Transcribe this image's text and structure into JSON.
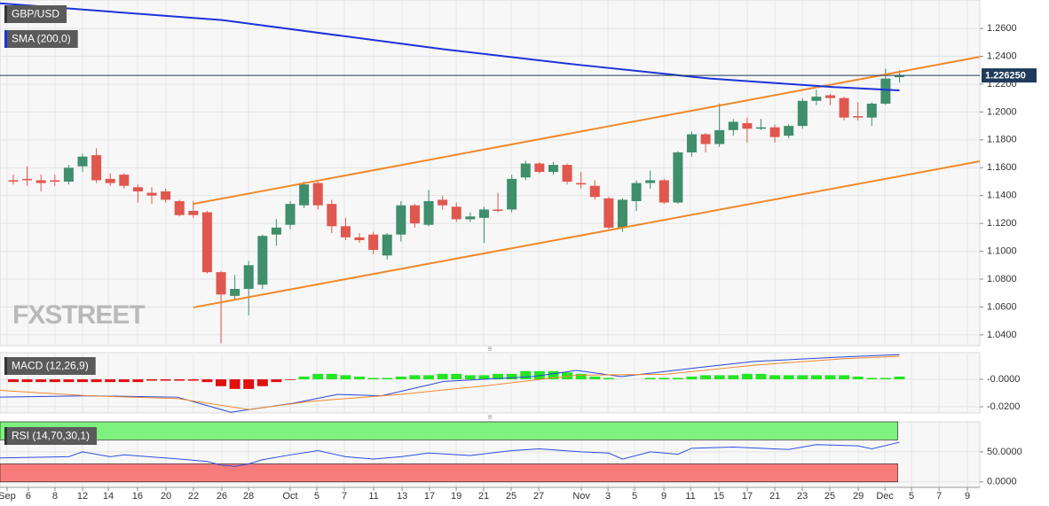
{
  "chart_data": [
    {
      "type": "candlestick",
      "title": "GBP/USD",
      "watermark": "FXSTREET",
      "open": [
        1.151,
        1.152,
        1.151,
        1.151,
        1.15,
        1.161,
        1.169,
        1.152,
        1.155,
        1.146,
        1.142,
        1.143,
        1.136,
        1.129,
        1.128,
        1.085,
        1.068,
        1.073,
        1.076,
        1.112,
        1.119,
        1.133,
        1.149,
        1.134,
        1.118,
        1.11,
        1.112,
        1.097,
        1.112,
        1.133,
        1.119,
        1.137,
        1.132,
        1.123,
        1.124,
        1.13,
        1.13,
        1.153,
        1.163,
        1.157,
        1.162,
        1.149,
        1.147,
        1.138,
        1.117,
        1.136,
        1.149,
        1.151,
        1.135,
        1.171,
        1.184,
        1.177,
        1.187,
        1.192,
        1.188,
        1.189,
        1.183,
        1.19,
        1.208,
        1.212,
        1.21,
        1.197,
        1.196,
        1.206,
        1.225
      ],
      "high": [
        1.155,
        1.161,
        1.155,
        1.155,
        1.162,
        1.17,
        1.174,
        1.156,
        1.156,
        1.148,
        1.146,
        1.145,
        1.137,
        1.136,
        1.129,
        1.086,
        1.083,
        1.093,
        1.112,
        1.123,
        1.136,
        1.15,
        1.15,
        1.137,
        1.124,
        1.113,
        1.114,
        1.113,
        1.136,
        1.134,
        1.144,
        1.14,
        1.135,
        1.128,
        1.132,
        1.142,
        1.155,
        1.165,
        1.164,
        1.164,
        1.163,
        1.157,
        1.151,
        1.139,
        1.138,
        1.151,
        1.158,
        1.152,
        1.172,
        1.186,
        1.185,
        1.206,
        1.195,
        1.196,
        1.195,
        1.191,
        1.191,
        1.21,
        1.216,
        1.213,
        1.211,
        1.207,
        1.207,
        1.231,
        1.23
      ],
      "low": [
        1.148,
        1.147,
        1.143,
        1.147,
        1.148,
        1.157,
        1.149,
        1.147,
        1.145,
        1.135,
        1.134,
        1.135,
        1.125,
        1.124,
        1.084,
        1.034,
        1.065,
        1.054,
        1.073,
        1.104,
        1.116,
        1.131,
        1.13,
        1.113,
        1.108,
        1.106,
        1.098,
        1.094,
        1.107,
        1.117,
        1.118,
        1.13,
        1.121,
        1.121,
        1.106,
        1.128,
        1.128,
        1.151,
        1.156,
        1.155,
        1.148,
        1.145,
        1.137,
        1.116,
        1.114,
        1.129,
        1.145,
        1.134,
        1.134,
        1.168,
        1.171,
        1.175,
        1.183,
        1.178,
        1.187,
        1.178,
        1.181,
        1.188,
        1.205,
        1.205,
        1.194,
        1.194,
        1.19,
        1.205,
        1.221
      ],
      "close": [
        1.15,
        1.151,
        1.149,
        1.15,
        1.16,
        1.168,
        1.151,
        1.149,
        1.147,
        1.143,
        1.14,
        1.137,
        1.126,
        1.126,
        1.085,
        1.069,
        1.073,
        1.09,
        1.111,
        1.117,
        1.134,
        1.148,
        1.133,
        1.118,
        1.11,
        1.108,
        1.101,
        1.112,
        1.133,
        1.12,
        1.136,
        1.133,
        1.123,
        1.125,
        1.13,
        1.129,
        1.152,
        1.163,
        1.157,
        1.162,
        1.15,
        1.148,
        1.139,
        1.117,
        1.137,
        1.149,
        1.151,
        1.135,
        1.171,
        1.184,
        1.177,
        1.187,
        1.193,
        1.188,
        1.189,
        1.182,
        1.19,
        1.208,
        1.211,
        1.21,
        1.196,
        1.196,
        1.206,
        1.224,
        1.226
      ],
      "up_color": "#3f8e6c",
      "down_color": "#e0574f",
      "xlim": [
        -0.96,
        69.8
      ],
      "ylim": [
        1.0323,
        1.2804
      ],
      "yticks": [
        {
          "value": 1.04,
          "label": "1.0400"
        },
        {
          "value": 1.06,
          "label": "1.0600"
        },
        {
          "value": 1.08,
          "label": "1.0800"
        },
        {
          "value": 1.1,
          "label": "1.1000"
        },
        {
          "value": 1.12,
          "label": "1.1200"
        },
        {
          "value": 1.14,
          "label": "1.1400"
        },
        {
          "value": 1.16,
          "label": "1.1600"
        },
        {
          "value": 1.18,
          "label": "1.1800"
        },
        {
          "value": 1.2,
          "label": "1.2000"
        },
        {
          "value": 1.22,
          "label": "1.2200"
        },
        {
          "value": 1.24,
          "label": "1.2400"
        },
        {
          "value": 1.26,
          "label": "1.2600"
        }
      ],
      "xticks": [
        {
          "value": -0.45,
          "label": "Sep"
        },
        {
          "value": 1.09,
          "label": "6"
        },
        {
          "value": 3.01,
          "label": "8"
        },
        {
          "value": 5.0,
          "label": "12"
        },
        {
          "value": 6.86,
          "label": "14"
        },
        {
          "value": 8.97,
          "label": "16"
        },
        {
          "value": 11.03,
          "label": "20"
        },
        {
          "value": 13.01,
          "label": "22"
        },
        {
          "value": 15.06,
          "label": "26"
        },
        {
          "value": 16.99,
          "label": "28"
        },
        {
          "value": 20.0,
          "label": "Oct"
        },
        {
          "value": 21.92,
          "label": "5"
        },
        {
          "value": 23.91,
          "label": "7"
        },
        {
          "value": 26.03,
          "label": "11"
        },
        {
          "value": 28.08,
          "label": "13"
        },
        {
          "value": 30.06,
          "label": "17"
        },
        {
          "value": 31.99,
          "label": "19"
        },
        {
          "value": 33.97,
          "label": "21"
        },
        {
          "value": 35.96,
          "label": "25"
        },
        {
          "value": 37.95,
          "label": "27"
        },
        {
          "value": 41.03,
          "label": "Nov"
        },
        {
          "value": 42.95,
          "label": "3"
        },
        {
          "value": 44.87,
          "label": "5"
        },
        {
          "value": 46.99,
          "label": "9"
        },
        {
          "value": 48.91,
          "label": "11"
        },
        {
          "value": 50.96,
          "label": "15"
        },
        {
          "value": 53.01,
          "label": "17"
        },
        {
          "value": 55.0,
          "label": "21"
        },
        {
          "value": 56.99,
          "label": "23"
        },
        {
          "value": 58.97,
          "label": "25"
        },
        {
          "value": 61.03,
          "label": "29"
        },
        {
          "value": 62.95,
          "label": "Dec"
        },
        {
          "value": 64.87,
          "label": "5"
        },
        {
          "value": 66.86,
          "label": "7"
        },
        {
          "value": 68.91,
          "label": "9"
        }
      ],
      "overlays": [
        {
          "name": "SMA (200,0)",
          "color": "#1c32d8",
          "x": [
            -0.96,
            15.06,
            31.1,
            40.7,
            50.3,
            59.1,
            64
          ],
          "values": [
            1.278,
            1.266,
            1.245,
            1.234,
            1.224,
            1.218,
            1.2155
          ]
        }
      ],
      "trend_lines": [
        {
          "color": "#f0892a",
          "x": [
            13,
            69.8
          ],
          "values": [
            1.134,
            1.2396
          ]
        },
        {
          "color": "#f0892a",
          "x": [
            13,
            69.8
          ],
          "values": [
            1.0597,
            1.1646
          ]
        }
      ],
      "last_price": {
        "value": 1.22625,
        "label": "1.226250"
      }
    },
    {
      "type": "macd",
      "title": "MACD (12,26,9)",
      "histogram": [
        -0.002,
        -0.002,
        -0.002,
        -0.002,
        -0.002,
        -0.002,
        -0.002,
        -0.002,
        -0.002,
        -0.002,
        -0.001,
        -0.001,
        -0.001,
        -0.001,
        -0.002,
        -0.005,
        -0.007,
        -0.007,
        -0.005,
        -0.002,
        -0.0005,
        0.002,
        0.004,
        0.004,
        0.003,
        0.002,
        0.001,
        0.001,
        0.002,
        0.003,
        0.003,
        0.004,
        0.004,
        0.003,
        0.003,
        0.004,
        0.004,
        0.006,
        0.006,
        0.006,
        0.005,
        0.004,
        0.002,
        0.001,
        0,
        0,
        0.001,
        0.001,
        0.001,
        0.002,
        0.003,
        0.003,
        0.003,
        0.004,
        0.004,
        0.003,
        0.003,
        0.003,
        0.003,
        0.003,
        0.003,
        0.002,
        0.001,
        0.001,
        0.002
      ],
      "pos_color": "#22e622",
      "neg_color": "#e01010",
      "series": [
        {
          "color": "#2a46d6",
          "x": [
            -0.96,
            5.45,
            11.86,
            15.7,
            20.19,
            23.4,
            26.6,
            31.1,
            37.5,
            40.7,
            43.9,
            49.0,
            53.5,
            59.3,
            64
          ],
          "values": [
            -0.013,
            -0.012,
            -0.013,
            -0.024,
            -0.0175,
            -0.011,
            -0.012,
            -0.0015,
            0.002,
            0.0065,
            0.002,
            0.008,
            0.013,
            0.016,
            0.018
          ]
        },
        {
          "color": "#ef8a2c",
          "x": [
            -0.96,
            5.45,
            11.86,
            17.0,
            21.5,
            27.9,
            34.3,
            40.7,
            47.1,
            53.5,
            59.9,
            64
          ],
          "values": [
            -0.008,
            -0.012,
            -0.014,
            -0.022,
            -0.016,
            -0.011,
            -0.0045,
            0.003,
            0.0037,
            0.0103,
            0.015,
            0.0168
          ]
        }
      ],
      "ylim": [
        -0.0245,
        0.0194
      ],
      "yticks": [
        {
          "value": -0.02,
          "label": "-0.0200"
        },
        {
          "value": 0,
          "label": "-0.0000"
        }
      ]
    },
    {
      "type": "rsi",
      "title": "RSI (14,70,30,1)",
      "upper": 70,
      "lower": 30,
      "upper_color": "#7ef27e",
      "lower_color": "#f87b7b",
      "series": [
        {
          "color": "#2e4fe0",
          "x": [
            -0.96,
            4,
            5,
            7,
            8,
            12,
            14,
            15,
            16,
            17,
            18,
            20,
            22,
            24,
            26,
            28,
            30,
            33,
            36,
            38,
            41,
            43,
            44,
            46,
            48,
            49,
            52,
            56,
            58,
            61,
            62,
            64
          ],
          "values": [
            40,
            42,
            50,
            42,
            45,
            38,
            34,
            28,
            26,
            30,
            37,
            45,
            52,
            42,
            38,
            42,
            48,
            44,
            52,
            55,
            50,
            48,
            38,
            50,
            46,
            56,
            58,
            54,
            62,
            60,
            55,
            66
          ]
        }
      ],
      "ylim": [
        -9.1,
        100
      ],
      "yticks": [
        {
          "value": 0,
          "label": "0.0000"
        },
        {
          "value": 50,
          "label": "50.0000"
        }
      ]
    }
  ]
}
